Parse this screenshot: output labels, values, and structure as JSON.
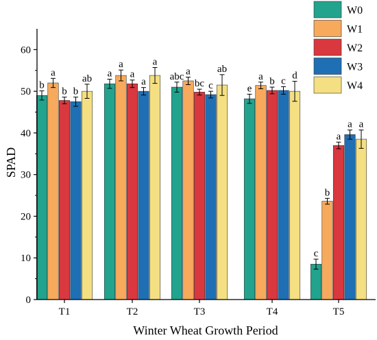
{
  "chart_data": {
    "type": "bar",
    "title": "",
    "xlabel": "Winter Wheat Growth Period",
    "ylabel": "SPAD",
    "ylim": [
      0,
      65
    ],
    "yticks": [
      0,
      10,
      20,
      30,
      40,
      50,
      60
    ],
    "categories": [
      "T1",
      "T2",
      "T3",
      "T4",
      "T5"
    ],
    "legend_position": "top-right",
    "series": [
      {
        "name": "W0",
        "color": "#22a38e",
        "values": [
          49.0,
          51.8,
          51.0,
          48.2,
          8.5
        ],
        "errors": [
          1.1,
          1.1,
          1.2,
          1.1,
          1.2
        ],
        "letters": [
          "b",
          "a",
          "abc",
          "e",
          "c"
        ]
      },
      {
        "name": "W1",
        "color": "#f7a95c",
        "values": [
          52.0,
          53.8,
          52.5,
          51.4,
          23.6
        ],
        "errors": [
          1.1,
          1.3,
          0.9,
          0.8,
          0.7
        ],
        "letters": [
          "a",
          "a",
          "a",
          "a",
          "b"
        ]
      },
      {
        "name": "W2",
        "color": "#d9383f",
        "values": [
          47.8,
          51.8,
          49.8,
          50.2,
          37.0
        ],
        "errors": [
          0.8,
          0.9,
          0.7,
          0.8,
          0.8
        ],
        "letters": [
          "b",
          "a",
          "bc",
          "b",
          "a"
        ]
      },
      {
        "name": "W3",
        "color": "#1f6fb4",
        "values": [
          47.5,
          50.0,
          49.2,
          50.2,
          39.6
        ],
        "errors": [
          1.1,
          0.9,
          0.8,
          0.9,
          1.1
        ],
        "letters": [
          "b",
          "a",
          "c",
          "c",
          "a"
        ]
      },
      {
        "name": "W4",
        "color": "#f4df82",
        "values": [
          50.0,
          53.8,
          51.5,
          50.0,
          38.5
        ],
        "errors": [
          1.7,
          1.9,
          2.5,
          2.4,
          2.2
        ],
        "letters": [
          "ab",
          "a",
          "ab",
          "d",
          "a"
        ]
      }
    ]
  }
}
